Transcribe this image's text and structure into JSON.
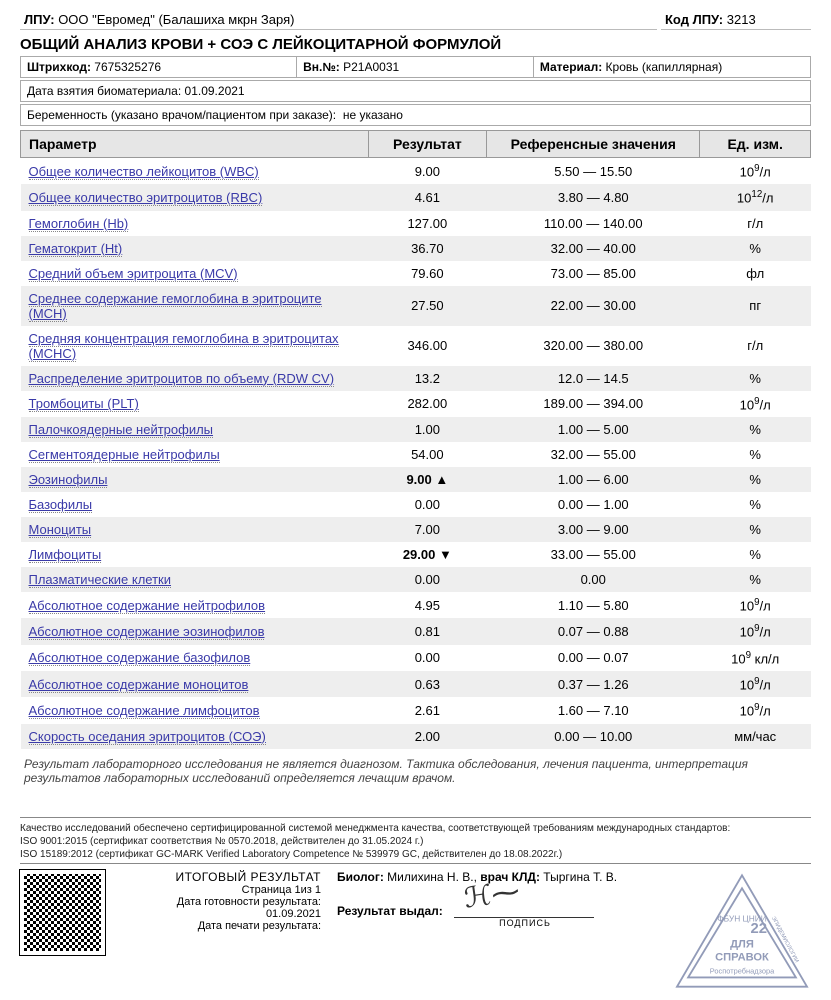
{
  "header": {
    "lpu_label": "ЛПУ:",
    "lpu_val": "ООО \"Евромед\" (Балашиха мкрн Заря)",
    "code_label": "Код ЛПУ:",
    "code_val": "3213",
    "title": "ОБЩИЙ АНАЛИЗ КРОВИ + СОЭ С ЛЕЙКОЦИТАРНОЙ ФОРМУЛОЙ",
    "barcode_label": "Штрихкод:",
    "barcode_val": "7675325276",
    "vn_label": "Вн.№:",
    "vn_val": "Р21А0031",
    "material_label": "Материал:",
    "material_val": "Кровь (капиллярная)",
    "date_label": "Дата взятия биоматериала:",
    "date_val": "01.09.2021",
    "preg_label": "Беременность (указано врачом/пациентом при заказе):",
    "preg_val": "не указано"
  },
  "table": {
    "columns": [
      "Параметр",
      "Результат",
      "Референсные значения",
      "Ед. изм."
    ],
    "rows": [
      {
        "param": "Общее количество лейкоцитов (WBC)",
        "result": "9.00",
        "ref": "5.50 — 15.50",
        "unit_base": "10",
        "unit_sup": "9",
        "unit_tail": "/л"
      },
      {
        "param": "Общее количество эритроцитов (RBC)",
        "result": "4.61",
        "ref": "3.80 — 4.80",
        "unit_base": "10",
        "unit_sup": "12",
        "unit_tail": "/л"
      },
      {
        "param": "Гемоглобин (Hb)",
        "result": "127.00",
        "ref": "110.00 — 140.00",
        "unit_plain": "г/л"
      },
      {
        "param": "Гематокрит (Ht)",
        "result": "36.70",
        "ref": "32.00 — 40.00",
        "unit_plain": "%"
      },
      {
        "param": "Средний объем эритроцита (MCV)",
        "result": "79.60",
        "ref": "73.00 — 85.00",
        "unit_plain": "фл"
      },
      {
        "param": "Среднее содержание гемоглобина в эритроците (MCH)",
        "result": "27.50",
        "ref": "22.00 — 30.00",
        "unit_plain": "пг"
      },
      {
        "param": "Средняя концентрация гемоглобина в эритроцитах (MCHC)",
        "result": "346.00",
        "ref": "320.00 — 380.00",
        "unit_plain": "г/л"
      },
      {
        "param": "Распределение эритроцитов по объему (RDW CV)",
        "result": "13.2",
        "ref": "12.0 — 14.5",
        "unit_plain": "%"
      },
      {
        "param": "Тромбоциты (PLT)",
        "result": "282.00",
        "ref": "189.00 — 394.00",
        "unit_base": "10",
        "unit_sup": "9",
        "unit_tail": "/л"
      },
      {
        "param": "Палочкоядерные нейтрофилы",
        "result": "1.00",
        "ref": "1.00 — 5.00",
        "unit_plain": "%"
      },
      {
        "param": "Сегментоядерные нейтрофилы",
        "result": "54.00",
        "ref": "32.00 — 55.00",
        "unit_plain": "%"
      },
      {
        "param": "Эозинофилы",
        "result": "9.00",
        "flag": "▲",
        "ref": "1.00 — 6.00",
        "unit_plain": "%"
      },
      {
        "param": "Базофилы",
        "result": "0.00",
        "ref": "0.00 — 1.00",
        "unit_plain": "%"
      },
      {
        "param": "Моноциты",
        "result": "7.00",
        "ref": "3.00 — 9.00",
        "unit_plain": "%"
      },
      {
        "param": "Лимфоциты",
        "result": "29.00",
        "flag": "▼",
        "ref": "33.00 — 55.00",
        "unit_plain": "%"
      },
      {
        "param": "Плазматические клетки",
        "result": "0.00",
        "ref": "0.00",
        "unit_plain": "%"
      },
      {
        "param": "Абсолютное содержание нейтрофилов",
        "result": "4.95",
        "ref": "1.10 — 5.80",
        "unit_base": "10",
        "unit_sup": "9",
        "unit_tail": "/л"
      },
      {
        "param": "Абсолютное содержание эозинофилов",
        "result": "0.81",
        "ref": "0.07 — 0.88",
        "unit_base": "10",
        "unit_sup": "9",
        "unit_tail": "/л"
      },
      {
        "param": "Абсолютное содержание базофилов",
        "result": "0.00",
        "ref": "0.00 — 0.07",
        "unit_base": "10",
        "unit_sup": "9",
        "unit_tail": " кл/л"
      },
      {
        "param": "Абсолютное содержание моноцитов",
        "result": "0.63",
        "ref": "0.37 — 1.26",
        "unit_base": "10",
        "unit_sup": "9",
        "unit_tail": "/л"
      },
      {
        "param": "Абсолютное содержание лимфоцитов",
        "result": "2.61",
        "ref": "1.60 — 7.10",
        "unit_base": "10",
        "unit_sup": "9",
        "unit_tail": "/л"
      },
      {
        "param": "Скорость оседания эритроцитов (СОЭ)",
        "result": "2.00",
        "ref": "0.00 — 10.00",
        "unit_plain": "мм/час"
      }
    ]
  },
  "disclaimer": "Результат лабораторного исследования не является диагнозом. Тактика обследования, лечения пациента, интерпретация результатов лабораторных исследований определяется лечащим врачом.",
  "quality": {
    "l1": "Качество исследований обеспечено сертифицированной системой менеджмента качества, соответствующей требованиям международных стандартов:",
    "l2": "ISO 9001:2015 (сертификат соответствия № 0570.2018, действителен до 31.05.2024 г.)",
    "l3": "ISO 15189:2012 (сертификат GC-MARK Verified Laboratory Competence № 539979 GC, действителен до 18.08.2022г.)"
  },
  "footer": {
    "result_title": "ИТОГОВЫЙ РЕЗУЛЬТАТ",
    "page": "Страница 1из 1",
    "ready_label": "Дата готовности результата:",
    "ready_val": "01.09.2021",
    "print_label": "Дата печати результата:",
    "print_val": "",
    "biolog_label": "Биолог:",
    "biolog_val": "Милихина Н. В.,",
    "doctor_label": "врач КЛД:",
    "doctor_val": "Тыргина Т. В.",
    "issued_label": "Результат выдал:",
    "sig_under": "ПОДПИСЬ",
    "stamp_l1": "ФБУН ЦНИИ",
    "stamp_num": "22",
    "stamp_l2": "ДЛЯ",
    "stamp_l3": "СПРАВОК",
    "stamp_l4": "Роспотребнадзора",
    "stamp_side": "ЭПИДЕМИОЛОГИИ"
  }
}
